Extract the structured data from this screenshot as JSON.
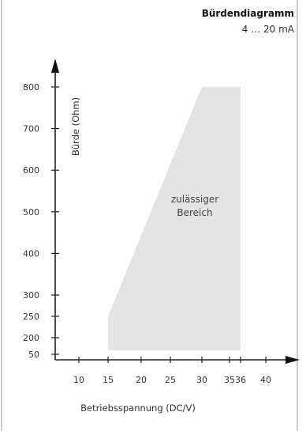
{
  "chart_data": {
    "type": "area",
    "title": "Bürdendiagramm",
    "subtitle": "4 … 20 mA",
    "xlabel": "Betriebsspannung (DC/V)",
    "ylabel": "Bürde (Ohm)",
    "x_ticks": [
      10,
      15,
      20,
      25,
      30,
      35,
      36,
      40
    ],
    "y_ticks": [
      50,
      200,
      250,
      300,
      400,
      500,
      600,
      700,
      800
    ],
    "region": {
      "label_lines": [
        "zulässiger",
        "Bereich"
      ],
      "color": "#e3e3e3",
      "polygon": [
        {
          "x": 15,
          "y": 50
        },
        {
          "x": 15,
          "y": 250
        },
        {
          "x": 30,
          "y": 800
        },
        {
          "x": 36,
          "y": 800
        },
        {
          "x": 36,
          "y": 50
        }
      ]
    },
    "grid": false
  }
}
